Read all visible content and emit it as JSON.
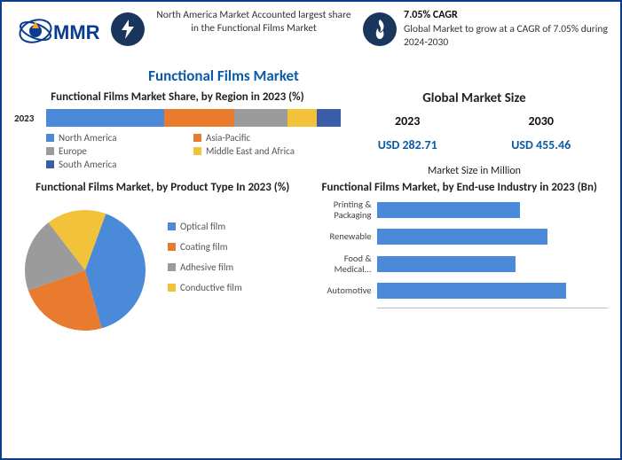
{
  "header": {
    "logo_text": "MMR",
    "fact1": "North America Market Accounted largest share in the Functional Films Market",
    "fact2_title": "7.05% CAGR",
    "fact2_body": "Global Market to grow at a CAGR of 7.05% during 2024-2030"
  },
  "main_title": "Functional Films Market",
  "region_chart": {
    "type": "stacked-bar",
    "title": "Functional Films Market Share, by Region in 2023 (%)",
    "axis_label": "2023",
    "segments": [
      {
        "label": "North America",
        "value": 40,
        "color": "#4a8ad8"
      },
      {
        "label": "Asia-Pacific",
        "value": 24,
        "color": "#e87b2e"
      },
      {
        "label": "Europe",
        "value": 18,
        "color": "#9b9b9b"
      },
      {
        "label": "Middle East and Africa",
        "value": 10,
        "color": "#f2c23a"
      },
      {
        "label": "South America",
        "value": 8,
        "color": "#3b5ca8"
      }
    ]
  },
  "market_size": {
    "title": "Global Market Size",
    "year1": "2023",
    "year2": "2030",
    "val1": "USD 282.71",
    "val2": "USD 455.46",
    "unit": "Market Size in Million"
  },
  "pie_chart": {
    "type": "pie",
    "title": "Functional Films Market, by Product Type In 2023 (%)",
    "slices": [
      {
        "label": "Optical film",
        "value": 40,
        "color": "#4a8ad8"
      },
      {
        "label": "Coating film",
        "value": 24,
        "color": "#e87b2e"
      },
      {
        "label": "Adhesive film",
        "value": 20,
        "color": "#9b9b9b"
      },
      {
        "label": "Conductive film",
        "value": 16,
        "color": "#f2c23a"
      }
    ],
    "legend_marker": "square"
  },
  "hbar_chart": {
    "type": "hbar",
    "title": "Functional Films Market, by End-use Industry in 2023 (Bn)",
    "bar_color": "#4a8ad8",
    "xmax": 100,
    "bars": [
      {
        "label": "Printing & Packaging",
        "value": 62
      },
      {
        "label": "Renewable",
        "value": 74
      },
      {
        "label": "Food & Medical...",
        "value": 60
      },
      {
        "label": "Automotive",
        "value": 82
      }
    ]
  }
}
